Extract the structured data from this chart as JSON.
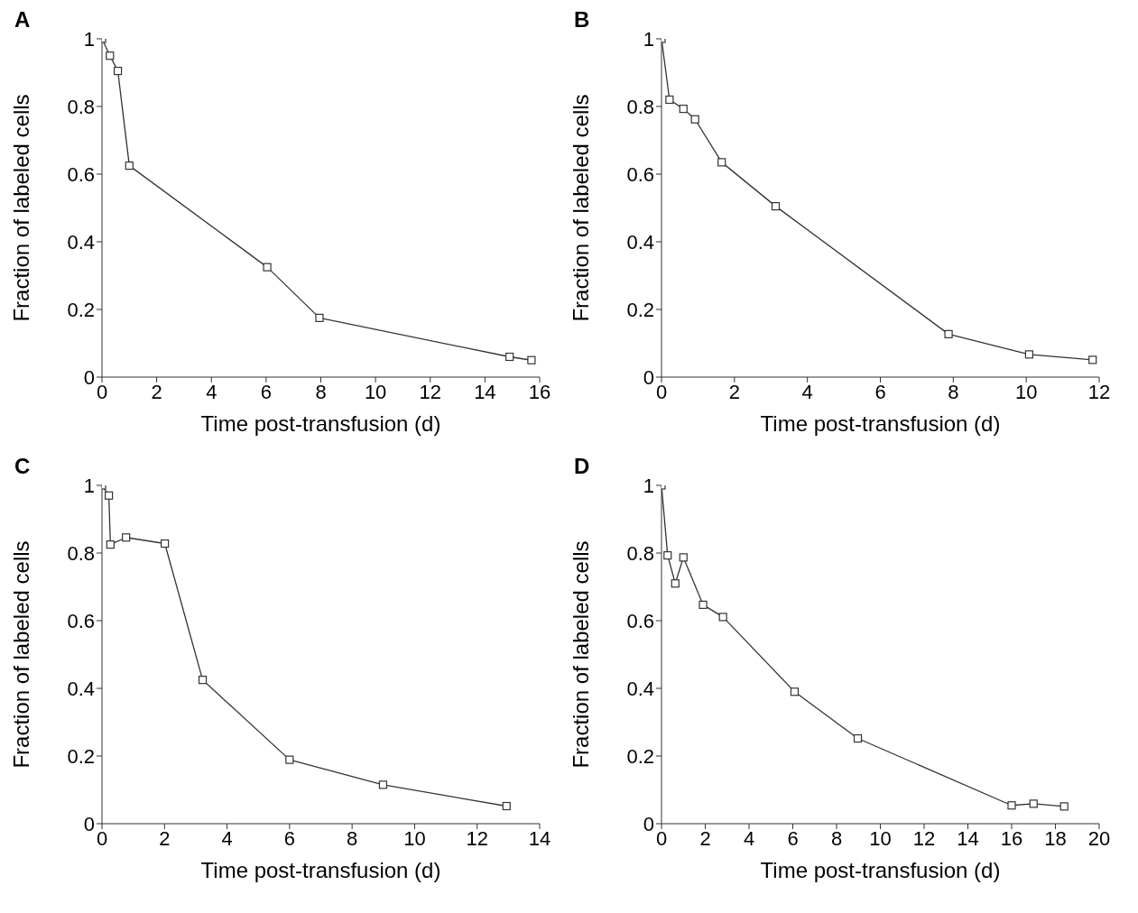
{
  "chart_data": [
    {
      "type": "line",
      "title": "A",
      "xlabel": "Time post-transfusion (d)",
      "ylabel": "Fraction of labeled cells",
      "x": [
        0,
        0.29,
        0.58,
        1.0,
        6.04,
        7.95,
        14.9,
        15.7
      ],
      "values": [
        1,
        0.95,
        0.905,
        0.625,
        0.325,
        0.175,
        0.06,
        0.05
      ],
      "color": "#333333",
      "marker": "square",
      "line_style": "solid",
      "xlim": [
        0,
        16
      ],
      "xticks": [
        0,
        2,
        4,
        6,
        8,
        10,
        12,
        14,
        16
      ],
      "ylim": [
        0,
        1
      ],
      "yticks": [
        0,
        0.2,
        0.4,
        0.6,
        0.8,
        1
      ],
      "grid": false,
      "legend": false
    },
    {
      "type": "line",
      "title": "B",
      "xlabel": "Time post-transfusion (d)",
      "ylabel": "Fraction of labeled cells",
      "x": [
        0,
        0.22,
        0.6,
        0.92,
        1.65,
        3.13,
        7.87,
        10.08,
        11.82
      ],
      "values": [
        1,
        0.82,
        0.793,
        0.762,
        0.635,
        0.505,
        0.127,
        0.067,
        0.051
      ],
      "color": "#333333",
      "marker": "square",
      "line_style": "solid",
      "xlim": [
        0,
        12
      ],
      "xticks": [
        0,
        2,
        4,
        6,
        8,
        10,
        12
      ],
      "ylim": [
        0,
        1
      ],
      "yticks": [
        0,
        0.2,
        0.4,
        0.6,
        0.8,
        1
      ],
      "grid": false,
      "legend": false
    },
    {
      "type": "line",
      "title": "C",
      "xlabel": "Time post-transfusion (d)",
      "ylabel": "Fraction of labeled cells",
      "x": [
        0,
        0.22,
        0.27,
        0.77,
        2.01,
        3.22,
        6.0,
        8.99,
        12.94
      ],
      "values": [
        1,
        0.97,
        0.825,
        0.846,
        0.828,
        0.425,
        0.189,
        0.115,
        0.052
      ],
      "color": "#333333",
      "marker": "square",
      "line_style": "solid",
      "xlim": [
        0,
        14
      ],
      "xticks": [
        0,
        2,
        4,
        6,
        8,
        10,
        12,
        14
      ],
      "ylim": [
        0,
        1
      ],
      "yticks": [
        0,
        0.2,
        0.4,
        0.6,
        0.8,
        1
      ],
      "grid": false,
      "legend": false
    },
    {
      "type": "line",
      "title": "D",
      "xlabel": "Time post-transfusion (d)",
      "ylabel": "Fraction of labeled cells",
      "x": [
        0,
        0.28,
        0.63,
        1.0,
        1.9,
        2.81,
        6.08,
        8.97,
        16.0,
        17.0,
        18.4
      ],
      "values": [
        1,
        0.793,
        0.71,
        0.787,
        0.647,
        0.611,
        0.39,
        0.252,
        0.054,
        0.059,
        0.051
      ],
      "color": "#333333",
      "marker": "square",
      "line_style": "solid",
      "xlim": [
        0,
        20
      ],
      "xticks": [
        0,
        2,
        4,
        6,
        8,
        10,
        12,
        14,
        16,
        18,
        20
      ],
      "ylim": [
        0,
        1
      ],
      "yticks": [
        0,
        0.2,
        0.4,
        0.6,
        0.8,
        1
      ],
      "grid": false,
      "legend": false
    }
  ]
}
